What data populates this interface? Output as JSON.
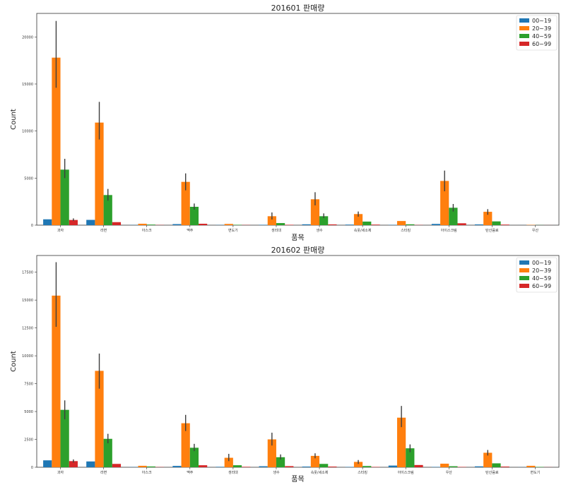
{
  "chart_data": [
    {
      "type": "bar",
      "title": "201601 판매량",
      "xlabel": "품목",
      "ylabel": "Count",
      "ylim": [
        0,
        22500
      ],
      "yticks": [
        0,
        5000,
        10000,
        15000,
        20000
      ],
      "ytick_labels": [
        "0",
        "5000",
        "10000",
        "15000",
        "20000"
      ],
      "grid": false,
      "legend_position": "top-right",
      "categories": [
        "과자",
        "라면",
        "아스크",
        "맥주",
        "면도기",
        "생리대",
        "생수",
        "속옷/세소제",
        "스타킹",
        "아이스크림",
        "탄산음료",
        "우산"
      ],
      "series": [
        {
          "name": "00~19",
          "color": "#1f77b4",
          "values": [
            620,
            560,
            20,
            110,
            20,
            40,
            90,
            60,
            30,
            130,
            80,
            5
          ],
          "err_low": [],
          "err_high": []
        },
        {
          "name": "20~39",
          "color": "#ff7f0e",
          "values": [
            17800,
            10900,
            150,
            4600,
            130,
            950,
            2750,
            1180,
            440,
            4700,
            1420,
            30
          ],
          "err_low": [
            14600,
            9100,
            null,
            3700,
            null,
            600,
            2100,
            900,
            null,
            3600,
            1100,
            null
          ],
          "err_high": [
            21700,
            13100,
            null,
            5500,
            null,
            1350,
            3500,
            1450,
            null,
            5800,
            1700,
            null
          ]
        },
        {
          "name": "40~59",
          "color": "#2ca02c",
          "values": [
            5900,
            3200,
            60,
            1950,
            40,
            220,
            950,
            380,
            90,
            1850,
            400,
            10
          ],
          "err_low": [
            5000,
            2600,
            null,
            1650,
            null,
            null,
            750,
            null,
            null,
            1450,
            null,
            null
          ],
          "err_high": [
            7050,
            3850,
            null,
            2300,
            null,
            null,
            1250,
            null,
            null,
            2250,
            null,
            null
          ]
        },
        {
          "name": "60~99",
          "color": "#d62728",
          "values": [
            550,
            320,
            20,
            150,
            20,
            40,
            80,
            60,
            20,
            200,
            60,
            5
          ],
          "err_low": [
            450,
            null,
            null,
            null,
            null,
            null,
            null,
            null,
            null,
            null,
            null,
            null
          ],
          "err_high": [
            720,
            null,
            null,
            null,
            null,
            null,
            null,
            null,
            null,
            null,
            null,
            null
          ]
        }
      ]
    },
    {
      "type": "bar",
      "title": "201602 판매량",
      "xlabel": "품목",
      "ylabel": "Count",
      "ylim": [
        0,
        19000
      ],
      "yticks": [
        0,
        2500,
        5000,
        7500,
        10000,
        12500,
        15000,
        17500
      ],
      "ytick_labels": [
        "0",
        "2500",
        "5000",
        "7500",
        "10000",
        "12500",
        "15000",
        "17500"
      ],
      "grid": false,
      "legend_position": "top-right",
      "categories": [
        "과자",
        "라면",
        "아스크",
        "맥주",
        "생리대",
        "생수",
        "속옷/세소제",
        "스타킹",
        "아이스크림",
        "우산",
        "탄산음료",
        "면도기"
      ],
      "series": [
        {
          "name": "00~19",
          "color": "#1f77b4",
          "values": [
            620,
            520,
            20,
            120,
            40,
            90,
            60,
            30,
            150,
            30,
            80,
            10
          ]
        },
        {
          "name": "20~39",
          "color": "#ff7f0e",
          "values": [
            15400,
            8650,
            130,
            3950,
            850,
            2500,
            1020,
            480,
            4450,
            320,
            1300,
            130
          ],
          "err_low": [
            12600,
            7050,
            null,
            3250,
            550,
            1950,
            800,
            300,
            3600,
            null,
            1050,
            null
          ],
          "err_high": [
            18400,
            10200,
            null,
            4700,
            1200,
            3100,
            1250,
            650,
            5500,
            null,
            1550,
            null
          ]
        },
        {
          "name": "40~59",
          "color": "#2ca02c",
          "values": [
            5150,
            2550,
            70,
            1750,
            180,
            900,
            300,
            110,
            1700,
            90,
            350,
            30
          ],
          "err_low": [
            4300,
            2150,
            null,
            1450,
            null,
            700,
            null,
            null,
            1350,
            null,
            null,
            null
          ],
          "err_high": [
            6000,
            3000,
            null,
            2100,
            null,
            1150,
            null,
            null,
            2050,
            null,
            null,
            null
          ]
        },
        {
          "name": "60~99",
          "color": "#d62728",
          "values": [
            550,
            300,
            20,
            180,
            40,
            100,
            60,
            30,
            200,
            30,
            60,
            10
          ],
          "err_low": [
            420,
            null,
            null,
            null,
            null,
            null,
            null,
            null,
            null,
            null,
            null,
            null
          ],
          "err_high": [
            700,
            null,
            null,
            null,
            null,
            null,
            null,
            null,
            null,
            null,
            null,
            null
          ]
        }
      ]
    }
  ]
}
